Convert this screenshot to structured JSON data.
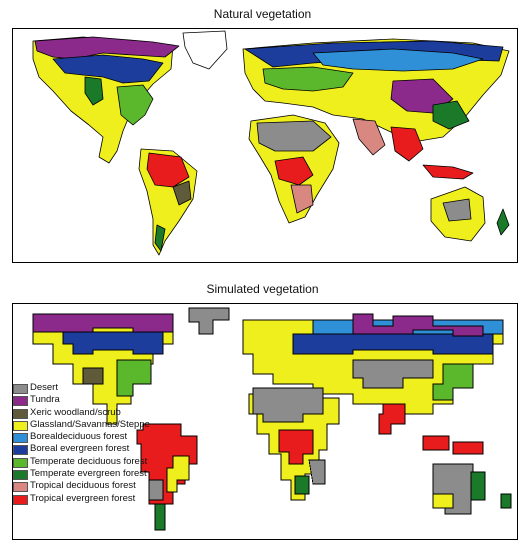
{
  "top_panel": {
    "title": "Natural vegetation"
  },
  "bottom_panel": {
    "title": "Simulated vegetation"
  },
  "legend": [
    {
      "label": "Desert",
      "color": "#8c8c8c"
    },
    {
      "label": "Tundra",
      "color": "#8b2a8b"
    },
    {
      "label": "Xeric woodland/scrub",
      "color": "#5e5a3a"
    },
    {
      "label": "Glassland/Savannas/Steppe",
      "color": "#f0ef1e"
    },
    {
      "label": "Borealdeciduous forest",
      "color": "#2f90d8"
    },
    {
      "label": "Boreal evergreen forest",
      "color": "#1d3d9c"
    },
    {
      "label": "Temperate deciduous forest",
      "color": "#5bb82d"
    },
    {
      "label": "Temperate evergreen forest",
      "color": "#1a7a2a"
    },
    {
      "label": "Tropical deciduous forest",
      "color": "#d88880"
    },
    {
      "label": "Tropical evergreen forest",
      "color": "#e81c1c"
    }
  ]
}
